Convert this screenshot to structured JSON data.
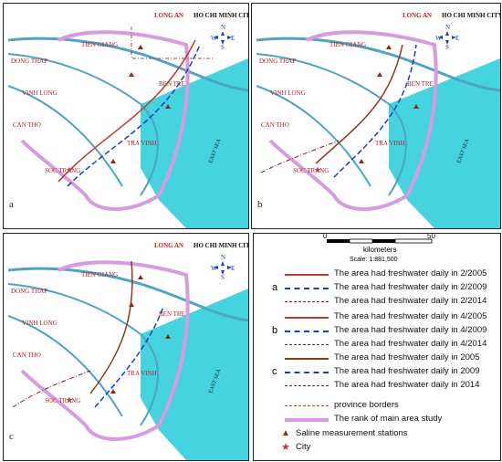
{
  "map": {
    "places": {
      "hcm": "HO CHI MINH CITY",
      "long_an": "LONG AN",
      "tien_giang": "TIEN GIANG",
      "dong_thap": "DONG THAP",
      "vinh_long": "VINH LONG",
      "ben_tre": "BEN TRE",
      "can_tho": "CAN THO",
      "tra_vinh": "TRA VINH",
      "soc_trang": "SOC TRANG",
      "east_sea": "EAST SEA",
      "north": "N",
      "south": "S",
      "west": "W",
      "east": "E"
    },
    "panels": [
      {
        "label": "a"
      },
      {
        "label": "b"
      },
      {
        "label": "c"
      }
    ]
  },
  "legend": {
    "scale_start": "0",
    "scale_end": "50",
    "scale_unit": "kilometers",
    "scale_ratio": "Scale: 1:881,500",
    "groups": [
      {
        "label": "a",
        "items": [
          {
            "text": "The area had freshwater daily in 2/2005",
            "color": "#c0392b",
            "style": "solid"
          },
          {
            "text": "The area had freshwater daily in 2/2009",
            "color": "#1a3fbf",
            "style": "dashed"
          },
          {
            "text": "The area had freshwater daily in 2/2014",
            "color": "#8b1a1a",
            "style": "dashdot"
          }
        ]
      },
      {
        "label": "b",
        "items": [
          {
            "text": "The area had freshwater daily in 4/2005",
            "color": "#c0392b",
            "style": "solid"
          },
          {
            "text": "The area had freshwater daily in 4/2009",
            "color": "#1a3fbf",
            "style": "dashed"
          },
          {
            "text": "The area had freshwater daily in 4/2014",
            "color": "#8b1a1a",
            "style": "dashdot"
          }
        ]
      },
      {
        "label": "c",
        "items": [
          {
            "text": "The area had freshwater daily in 2005",
            "color": "#8b3a1a",
            "style": "solid"
          },
          {
            "text": "The area had freshwater daily in 2009",
            "color": "#1a3fbf",
            "style": "dashed"
          },
          {
            "text": "The area had freshwater daily in 2014",
            "color": "#8b1a1a",
            "style": "dashdot"
          }
        ]
      }
    ],
    "other": [
      {
        "text": "province borders",
        "color": "#a0522d"
      },
      {
        "text": "The rank of main area study",
        "color": "#d79be0"
      },
      {
        "text": "Saline measurement stations",
        "color": "#8b2a10"
      },
      {
        "text": "City",
        "color": "#c0392b"
      }
    ]
  }
}
